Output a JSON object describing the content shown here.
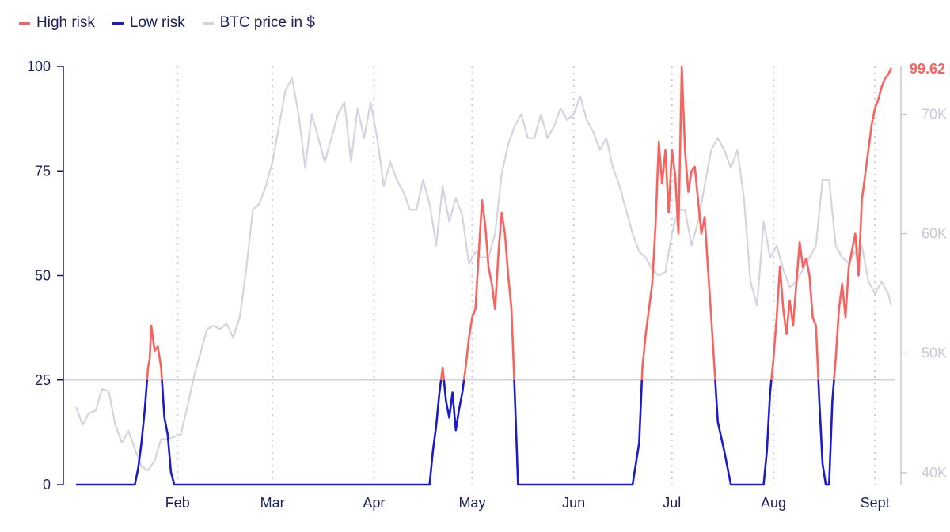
{
  "colors": {
    "high": "#f8635f",
    "low": "#1a1ccc",
    "price": "#d4d4e0",
    "axis": "#1b1f5e",
    "grid": "#c9c9d6",
    "threshold": "#c8c8d4"
  },
  "legend": [
    {
      "label": "High risk",
      "color": "#f8635f"
    },
    {
      "label": "Low risk",
      "color": "#1a1ccc"
    },
    {
      "label": "BTC price in $",
      "color": "#d4d4e0"
    }
  ],
  "chart_data": {
    "type": "line",
    "title": "",
    "xlabel": "",
    "ylabel": "",
    "ylim": [
      0,
      100
    ],
    "ylim_right": [
      39000,
      74000
    ],
    "threshold": 25,
    "last_value_label": "99.62",
    "y_ticks_left": [
      "0",
      "25",
      "50",
      "75",
      "100"
    ],
    "y_ticks_right": [
      "40K",
      "50K",
      "60K",
      "70K"
    ],
    "month_labels": [
      "Feb",
      "Mar",
      "Apr",
      "May",
      "Jun",
      "Jul",
      "Aug",
      "Sept"
    ],
    "month_day": [
      31,
      60,
      91,
      121,
      152,
      182,
      213,
      244
    ],
    "x_range": [
      0,
      250
    ],
    "legend_position": "top-left",
    "series": [
      {
        "name": "Risk",
        "x": [
          0,
          18,
          19,
          20,
          21,
          22,
          22.5,
          23,
          24,
          25,
          26,
          27,
          28,
          29,
          30,
          31,
          33,
          35,
          60,
          90,
          108,
          109,
          110,
          111,
          112,
          113,
          114,
          115,
          116,
          117,
          118,
          119,
          120,
          121,
          122,
          123,
          124,
          125,
          126,
          127,
          128,
          129,
          130,
          131,
          132,
          133,
          134,
          135,
          136,
          137,
          138,
          140,
          142,
          150,
          170,
          172,
          173,
          174,
          175,
          176,
          177,
          178,
          179,
          180,
          181,
          182,
          183,
          184,
          185,
          186,
          187,
          188,
          189,
          190,
          191,
          192,
          193,
          194,
          195,
          196,
          198,
          200,
          205,
          208,
          210,
          211,
          212,
          213,
          214,
          215,
          216,
          217,
          218,
          219,
          220,
          221,
          222,
          223,
          224,
          225,
          226,
          227,
          228,
          229,
          230,
          231,
          232,
          233,
          234,
          235,
          236,
          237,
          238,
          239,
          240,
          241,
          242,
          243,
          244,
          245,
          246,
          247,
          248,
          249
        ],
        "y": [
          0,
          0,
          4,
          10,
          18,
          28,
          30,
          38,
          32,
          33,
          28,
          16,
          12,
          3,
          0,
          0,
          0,
          0,
          0,
          0,
          0,
          8,
          14,
          22,
          28,
          20,
          16,
          22,
          13,
          18,
          22,
          28,
          35,
          40,
          42,
          55,
          68,
          62,
          52,
          48,
          42,
          55,
          65,
          60,
          50,
          42,
          22,
          0,
          0,
          0,
          0,
          0,
          0,
          0,
          0,
          10,
          28,
          36,
          42,
          48,
          62,
          82,
          72,
          80,
          65,
          80,
          74,
          60,
          100,
          80,
          70,
          75,
          76,
          68,
          60,
          64,
          52,
          40,
          28,
          15,
          8,
          0,
          0,
          0,
          0,
          8,
          22,
          30,
          40,
          52,
          42,
          36,
          44,
          38,
          48,
          58,
          52,
          54,
          50,
          40,
          38,
          20,
          5,
          0,
          0,
          20,
          30,
          42,
          48,
          40,
          52,
          56,
          60,
          50,
          68,
          74,
          80,
          86,
          90,
          92,
          95,
          97,
          98,
          99.62
        ]
      },
      {
        "name": "BTC price in $",
        "x": [
          0,
          2,
          4,
          6,
          8,
          10,
          12,
          14,
          16,
          18,
          20,
          22,
          24,
          26,
          28,
          30,
          32,
          34,
          36,
          38,
          40,
          42,
          44,
          46,
          48,
          50,
          52,
          54,
          56,
          58,
          60,
          62,
          64,
          66,
          68,
          70,
          72,
          74,
          76,
          78,
          80,
          82,
          84,
          86,
          88,
          90,
          92,
          94,
          96,
          98,
          100,
          102,
          104,
          106,
          108,
          110,
          112,
          114,
          116,
          118,
          120,
          122,
          124,
          126,
          128,
          130,
          132,
          134,
          136,
          138,
          140,
          142,
          144,
          146,
          148,
          150,
          152,
          154,
          156,
          158,
          160,
          162,
          164,
          166,
          168,
          170,
          172,
          174,
          176,
          178,
          180,
          182,
          184,
          186,
          188,
          190,
          192,
          194,
          196,
          198,
          200,
          202,
          204,
          206,
          208,
          210,
          212,
          214,
          216,
          218,
          220,
          222,
          224,
          226,
          228,
          230,
          232,
          234,
          236,
          238,
          240,
          242,
          244,
          246,
          248,
          249
        ],
        "y": [
          45500,
          44000,
          45000,
          45200,
          47000,
          46800,
          44000,
          42500,
          43500,
          42000,
          40500,
          40200,
          41000,
          42800,
          42800,
          43000,
          43200,
          45500,
          48000,
          50000,
          52000,
          52300,
          52000,
          52500,
          51300,
          53000,
          57000,
          62000,
          62500,
          64000,
          66000,
          69000,
          72000,
          73000,
          70000,
          65500,
          70000,
          68000,
          66000,
          68000,
          70000,
          71000,
          66000,
          70500,
          68000,
          71000,
          68000,
          64000,
          66000,
          64500,
          63500,
          62000,
          62000,
          64500,
          62500,
          59000,
          64000,
          61000,
          63000,
          61500,
          57500,
          58500,
          58000,
          58000,
          60000,
          65000,
          67500,
          69000,
          70000,
          68000,
          68000,
          70000,
          68000,
          69000,
          70500,
          69500,
          70000,
          71500,
          69500,
          68500,
          67000,
          68000,
          65500,
          64000,
          62000,
          60000,
          58500,
          58000,
          57000,
          56500,
          56800,
          60000,
          62000,
          62000,
          59000,
          61000,
          64000,
          67000,
          68000,
          67000,
          65500,
          67000,
          63000,
          56000,
          54000,
          61000,
          58000,
          59000,
          57000,
          55500,
          56000,
          57000,
          58000,
          59000,
          64500,
          64500,
          59000,
          58000,
          57500,
          58500,
          59000,
          56000,
          55000,
          56000,
          55000,
          54000
        ]
      }
    ]
  }
}
